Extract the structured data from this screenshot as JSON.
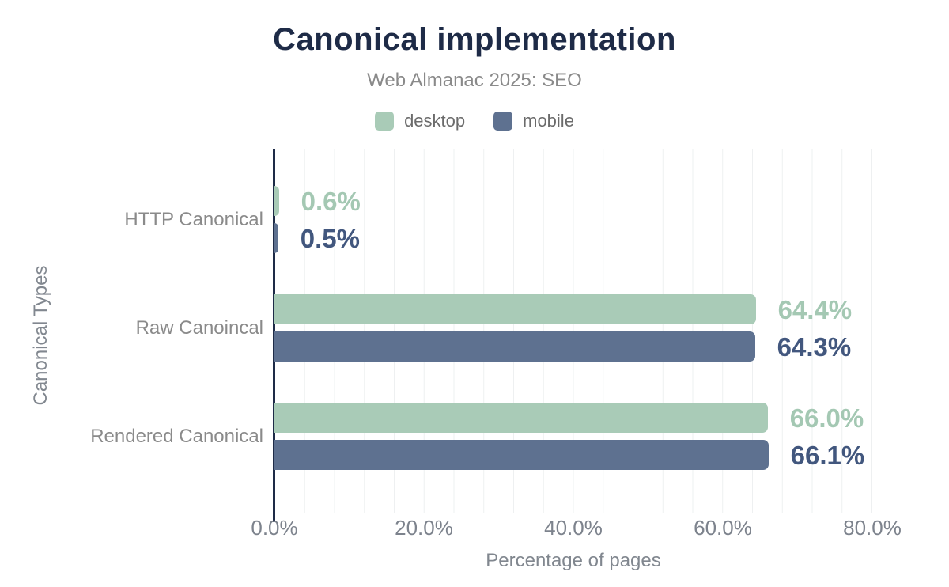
{
  "header": {
    "title": "Canonical implementation",
    "subtitle": "Web Almanac 2025: SEO"
  },
  "colors": {
    "title": "#1e2b47",
    "axis_line": "#1e2b47",
    "desktop": "#a9cbb7",
    "mobile": "#5e7190",
    "desktop_label": "#a4c8b3",
    "mobile_label": "#42577e",
    "gridline": "#eef0f1",
    "muted_text": "#8a8a8a"
  },
  "legend": {
    "items": [
      {
        "label": "desktop",
        "color": "#a9cbb7"
      },
      {
        "label": "mobile",
        "color": "#5e7190"
      }
    ]
  },
  "chart_data": {
    "type": "bar",
    "orientation": "horizontal",
    "title": "Canonical implementation",
    "subtitle": "Web Almanac 2025: SEO",
    "categories": [
      "HTTP Canonical",
      "Raw Canoincal",
      "Rendered Canonical"
    ],
    "series": [
      {
        "name": "desktop",
        "color": "#a9cbb7",
        "values": [
          0.6,
          64.4,
          66.0
        ],
        "labels": [
          "0.6%",
          "64.4%",
          "66.0%"
        ]
      },
      {
        "name": "mobile",
        "color": "#5e7190",
        "values": [
          0.5,
          64.3,
          66.1
        ],
        "labels": [
          "0.5%",
          "64.3%",
          "66.1%"
        ]
      }
    ],
    "xlabel": "Percentage of pages",
    "ylabel": "Canonical Types",
    "xlim": [
      0,
      80
    ],
    "xticks": [
      "0.0%",
      "20.0%",
      "40.0%",
      "60.0%",
      "80.0%"
    ],
    "xtick_values": [
      0,
      20,
      40,
      60,
      80
    ],
    "grid": "minor vertical gridlines every 4%",
    "legend_position": "top"
  }
}
